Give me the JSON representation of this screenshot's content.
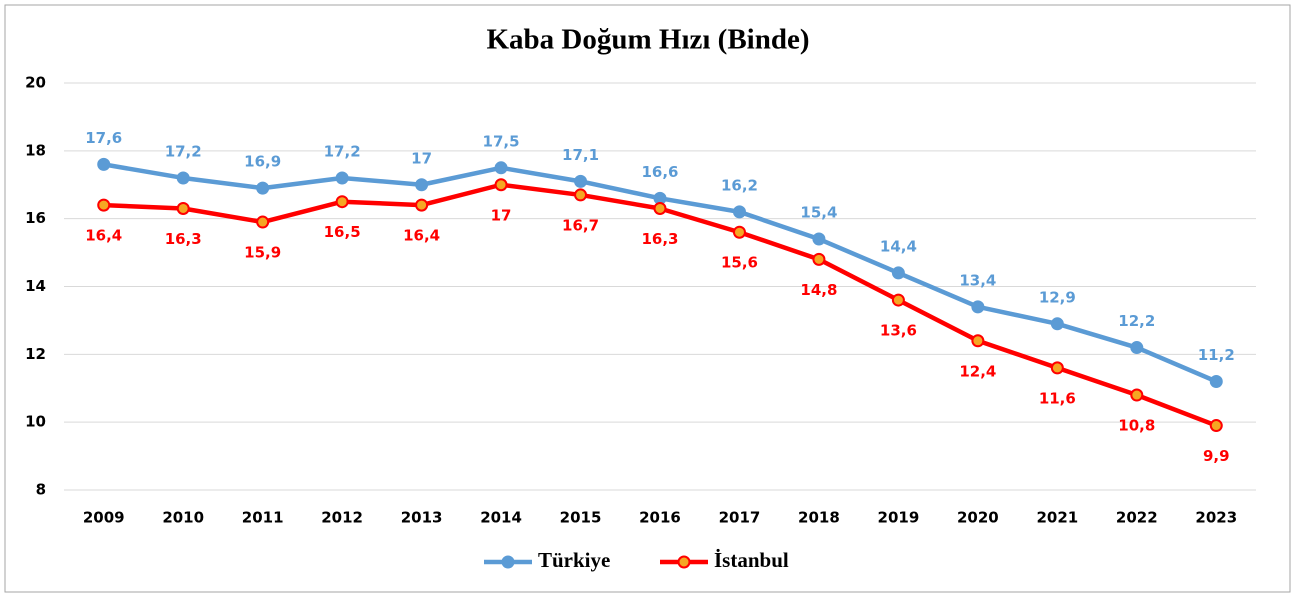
{
  "chart_data": {
    "type": "line",
    "title": "Kaba Doğum Hızı (Binde)",
    "categories": [
      "2009",
      "2010",
      "2011",
      "2012",
      "2013",
      "2014",
      "2015",
      "2016",
      "2017",
      "2018",
      "2019",
      "2020",
      "2021",
      "2022",
      "2023"
    ],
    "series": [
      {
        "name": "Türkiye",
        "color": "#5b9bd5",
        "values": [
          17.6,
          17.2,
          16.9,
          17.2,
          17,
          17.5,
          17.1,
          16.6,
          16.2,
          15.4,
          14.4,
          13.4,
          12.9,
          12.2,
          11.2
        ],
        "value_labels": [
          "17,6",
          "17,2",
          "16,9",
          "17,2",
          "17",
          "17,5",
          "17,1",
          "16,6",
          "16,2",
          "15,4",
          "14,4",
          "13,4",
          "12,9",
          "12,2",
          "11,2"
        ]
      },
      {
        "name": "İstanbul",
        "color": "#ff0000",
        "values": [
          16.4,
          16.3,
          15.9,
          16.5,
          16.4,
          17,
          16.7,
          16.3,
          15.6,
          14.8,
          13.6,
          12.4,
          11.6,
          10.8,
          9.9
        ],
        "value_labels": [
          "16,4",
          "16,3",
          "15,9",
          "16,5",
          "16,4",
          "17",
          "16,7",
          "16,3",
          "15,6",
          "14,8",
          "13,6",
          "12,4",
          "11,6",
          "10,8",
          "9,9"
        ]
      }
    ],
    "ylim": [
      8,
      20
    ],
    "yticks": [
      8,
      10,
      12,
      14,
      16,
      18,
      20
    ],
    "grid": true,
    "legend": "bottom"
  }
}
